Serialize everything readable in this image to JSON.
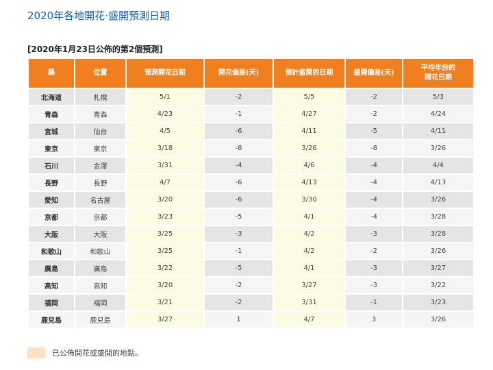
{
  "title": "2020年各地開花‧盛開預測日期",
  "subtitle": "[2020年1月23日公佈的第2個預測]",
  "table": {
    "headers": [
      "縣",
      "位置",
      "預測開花日期",
      "開花偏差(天)",
      "預計盛開的日期",
      "盛開偏差(天)",
      "平均年份的\n開花日期"
    ],
    "rows": [
      [
        "北海道",
        "札幌",
        "5/1",
        "-2",
        "5/5",
        "-2",
        "5/3"
      ],
      [
        "青森",
        "青森",
        "4/23",
        "-1",
        "4/27",
        "-2",
        "4/24"
      ],
      [
        "宮城",
        "仙台",
        "4/5",
        "-6",
        "4/11",
        "-5",
        "4/11"
      ],
      [
        "東京",
        "東京",
        "3/18",
        "-8",
        "3/26",
        "-8",
        "3/26"
      ],
      [
        "石川",
        "金澤",
        "3/31",
        "-4",
        "4/6",
        "-4",
        "4/4"
      ],
      [
        "長野",
        "長野",
        "4/7",
        "-6",
        "4/13",
        "-4",
        "4/13"
      ],
      [
        "愛知",
        "名古屋",
        "3/20",
        "-6",
        "3/30",
        "-4",
        "3/26"
      ],
      [
        "京都",
        "京都",
        "3/23",
        "-5",
        "4/1",
        "-4",
        "3/28"
      ],
      [
        "大阪",
        "大阪",
        "3/25",
        "-3",
        "4/2",
        "-3",
        "3/28"
      ],
      [
        "和歌山",
        "和歌山",
        "3/25",
        "-1",
        "4/2",
        "-2",
        "3/26"
      ],
      [
        "廣島",
        "廣島",
        "3/22",
        "-5",
        "4/1",
        "-3",
        "3/27"
      ],
      [
        "高知",
        "高知",
        "3/20",
        "-2",
        "3/27",
        "-3",
        "3/22"
      ],
      [
        "福岡",
        "福岡",
        "3/21",
        "-2",
        "3/31",
        "-1",
        "3/23"
      ],
      [
        "鹿兒島",
        "鹿兒島",
        "3/27",
        "1",
        "4/7",
        "3",
        "3/26"
      ]
    ]
  },
  "legend": {
    "text": "已公佈開花或盛開的地點。",
    "swatch_color": "#fde1c4"
  },
  "colors": {
    "header": "#f07f1f",
    "title": "#1a5fb4",
    "highlight_column": "#fcfbe3"
  }
}
